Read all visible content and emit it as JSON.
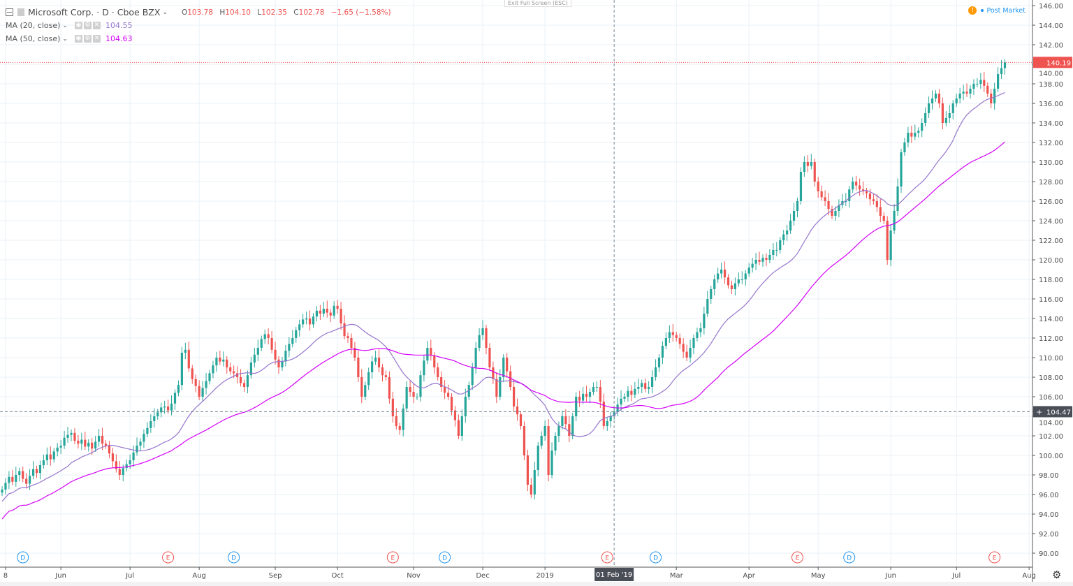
{
  "header": {
    "symbol_title": "Microsoft Corp. · D · Cboe BZX",
    "ohlc": {
      "o_label": "O",
      "o": "103.78",
      "h_label": "H",
      "h": "104.10",
      "l_label": "L",
      "l": "102.35",
      "c_label": "C",
      "c": "102.78",
      "change": "−1.65 (−1.58%)"
    },
    "indicators": [
      {
        "label": "MA (20, close)",
        "value": "104.55",
        "color": "#9575cd"
      },
      {
        "label": "MA (50, close)",
        "value": "104.63",
        "color": "#d500f9"
      }
    ],
    "exit_fullscreen": "Exit Full Screen (ESC)",
    "post_market": "Post Market",
    "warning_icon": "!"
  },
  "colors": {
    "up": "#26a69a",
    "down": "#ef5350",
    "grid": "#e9f1f7",
    "last_price": "#ef5350",
    "crosshair_label": "#4a4e57"
  },
  "crosshair": {
    "date_label": "01 Feb '19",
    "price_label": "104.47"
  },
  "chart_data": {
    "type": "candlestick",
    "symbol": "Microsoft Corp.",
    "interval": "D",
    "exchange": "Cboe BZX",
    "ylim": [
      89,
      147
    ],
    "y_ticks": [
      "146.00",
      "144.00",
      "142.00",
      "140.00",
      "138.00",
      "136.00",
      "134.00",
      "132.00",
      "130.00",
      "128.00",
      "126.00",
      "124.00",
      "122.00",
      "120.00",
      "118.00",
      "116.00",
      "114.00",
      "112.00",
      "110.00",
      "108.00",
      "106.00",
      "104.00",
      "102.00",
      "100.00",
      "98.00",
      "96.00",
      "94.00",
      "92.00",
      "90.00"
    ],
    "x_ticks": [
      {
        "label": "8",
        "day": 1
      },
      {
        "label": "Jun",
        "day": 17
      },
      {
        "label": "Jul",
        "day": 37
      },
      {
        "label": "Aug",
        "day": 57
      },
      {
        "label": "Sep",
        "day": 79
      },
      {
        "label": "Oct",
        "day": 97
      },
      {
        "label": "Nov",
        "day": 119
      },
      {
        "label": "Dec",
        "day": 139
      },
      {
        "label": "2019",
        "day": 157
      },
      {
        "label": "Mar",
        "day": 195
      },
      {
        "label": "Apr",
        "day": 216
      },
      {
        "label": "May",
        "day": 236
      },
      {
        "label": "Jun",
        "day": 257
      },
      {
        "label": "Jul",
        "day": 276
      },
      {
        "label": "Aug",
        "day": 297
      }
    ],
    "last_price": "140.19",
    "crosshair_day": 177,
    "closes": [
      96.5,
      97.2,
      97.8,
      97.3,
      98.0,
      98.4,
      97.6,
      97.1,
      97.9,
      98.6,
      98.2,
      99.0,
      99.5,
      100.1,
      99.6,
      100.4,
      100.8,
      101.0,
      101.8,
      102.1,
      102.3,
      101.5,
      101.2,
      101.6,
      100.9,
      101.3,
      100.7,
      101.4,
      102.0,
      101.2,
      101.0,
      100.2,
      99.4,
      98.6,
      98.0,
      98.7,
      99.1,
      99.5,
      100.3,
      101.0,
      101.4,
      102.2,
      102.8,
      103.5,
      104.0,
      104.4,
      104.9,
      105.0,
      104.6,
      105.3,
      106.4,
      107.2,
      110.5,
      110.8,
      108.9,
      107.8,
      107.1,
      106.0,
      106.9,
      107.6,
      108.4,
      109.2,
      110.0,
      109.6,
      109.8,
      109.0,
      108.6,
      108.4,
      108.0,
      107.4,
      107.0,
      108.2,
      109.5,
      110.3,
      111.0,
      111.9,
      112.4,
      112.0,
      110.8,
      109.8,
      109.0,
      109.6,
      110.7,
      111.4,
      112.0,
      112.8,
      113.4,
      113.9,
      114.0,
      113.4,
      114.2,
      114.8,
      114.5,
      115.0,
      114.6,
      114.3,
      115.3,
      115.0,
      113.5,
      112.2,
      112.0,
      111.0,
      110.0,
      108.0,
      106.0,
      107.2,
      108.5,
      109.6,
      110.0,
      109.0,
      108.2,
      108.0,
      105.8,
      104.0,
      103.0,
      102.6,
      104.8,
      107.0,
      106.5,
      106.0,
      106.0,
      108.2,
      109.7,
      111.0,
      110.2,
      109.0,
      108.0,
      107.0,
      106.4,
      106.0,
      104.6,
      103.6,
      102.0,
      104.0,
      106.0,
      107.2,
      109.0,
      111.0,
      112.3,
      113.0,
      111.0,
      109.0,
      107.8,
      106.0,
      108.0,
      110.0,
      108.6,
      107.0,
      105.0,
      104.2,
      103.0,
      100.0,
      97.0,
      96.0,
      98.5,
      101.0,
      102.0,
      103.0,
      98.0,
      100.5,
      102.0,
      103.0,
      104.0,
      103.2,
      102.0,
      104.0,
      106.0,
      105.6,
      106.3,
      106.0,
      106.5,
      107.0,
      107.0,
      105.5,
      103.0,
      103.5,
      104.0,
      104.5,
      105.2,
      105.8,
      106.0,
      106.6,
      106.2,
      106.8,
      107.0,
      107.4,
      106.8,
      107.0,
      108.0,
      109.0,
      110.0,
      111.2,
      112.0,
      112.6,
      112.3,
      112.0,
      111.4,
      110.6,
      110.0,
      111.0,
      112.0,
      112.6,
      113.0,
      114.5,
      116.0,
      117.0,
      118.0,
      118.6,
      119.0,
      118.2,
      117.4,
      117.0,
      117.6,
      118.0,
      118.0,
      118.6,
      119.2,
      119.6,
      120.0,
      119.8,
      120.2,
      120.0,
      120.5,
      121.0,
      121.0,
      122.0,
      122.6,
      123.0,
      124.0,
      125.0,
      126.0,
      129.0,
      130.0,
      129.6,
      130.0,
      128.0,
      127.0,
      126.4,
      126.0,
      125.2,
      124.5,
      125.0,
      125.6,
      126.0,
      126.0,
      127.2,
      128.0,
      127.6,
      127.2,
      127.0,
      126.8,
      126.2,
      126.0,
      125.4,
      124.5,
      124.0,
      120.0,
      123.0,
      125.0,
      127.5,
      131.0,
      132.0,
      133.0,
      132.6,
      133.0,
      133.2,
      134.0,
      135.0,
      136.0,
      136.5,
      137.0,
      136.0,
      134.0,
      134.5,
      135.0,
      136.0,
      136.5,
      137.0,
      137.2,
      137.0,
      137.5,
      138.0,
      138.0,
      138.4,
      137.8,
      137.0,
      136.0,
      137.5,
      139.0,
      139.6,
      140.19
    ],
    "events": [
      {
        "type": "D",
        "day": 6
      },
      {
        "type": "E",
        "day": 48
      },
      {
        "type": "D",
        "day": 67
      },
      {
        "type": "E",
        "day": 113
      },
      {
        "type": "D",
        "day": 128
      },
      {
        "type": "E",
        "day": 175
      },
      {
        "type": "D",
        "day": 189
      },
      {
        "type": "E",
        "day": 230
      },
      {
        "type": "D",
        "day": 245
      },
      {
        "type": "E",
        "day": 287
      }
    ]
  }
}
